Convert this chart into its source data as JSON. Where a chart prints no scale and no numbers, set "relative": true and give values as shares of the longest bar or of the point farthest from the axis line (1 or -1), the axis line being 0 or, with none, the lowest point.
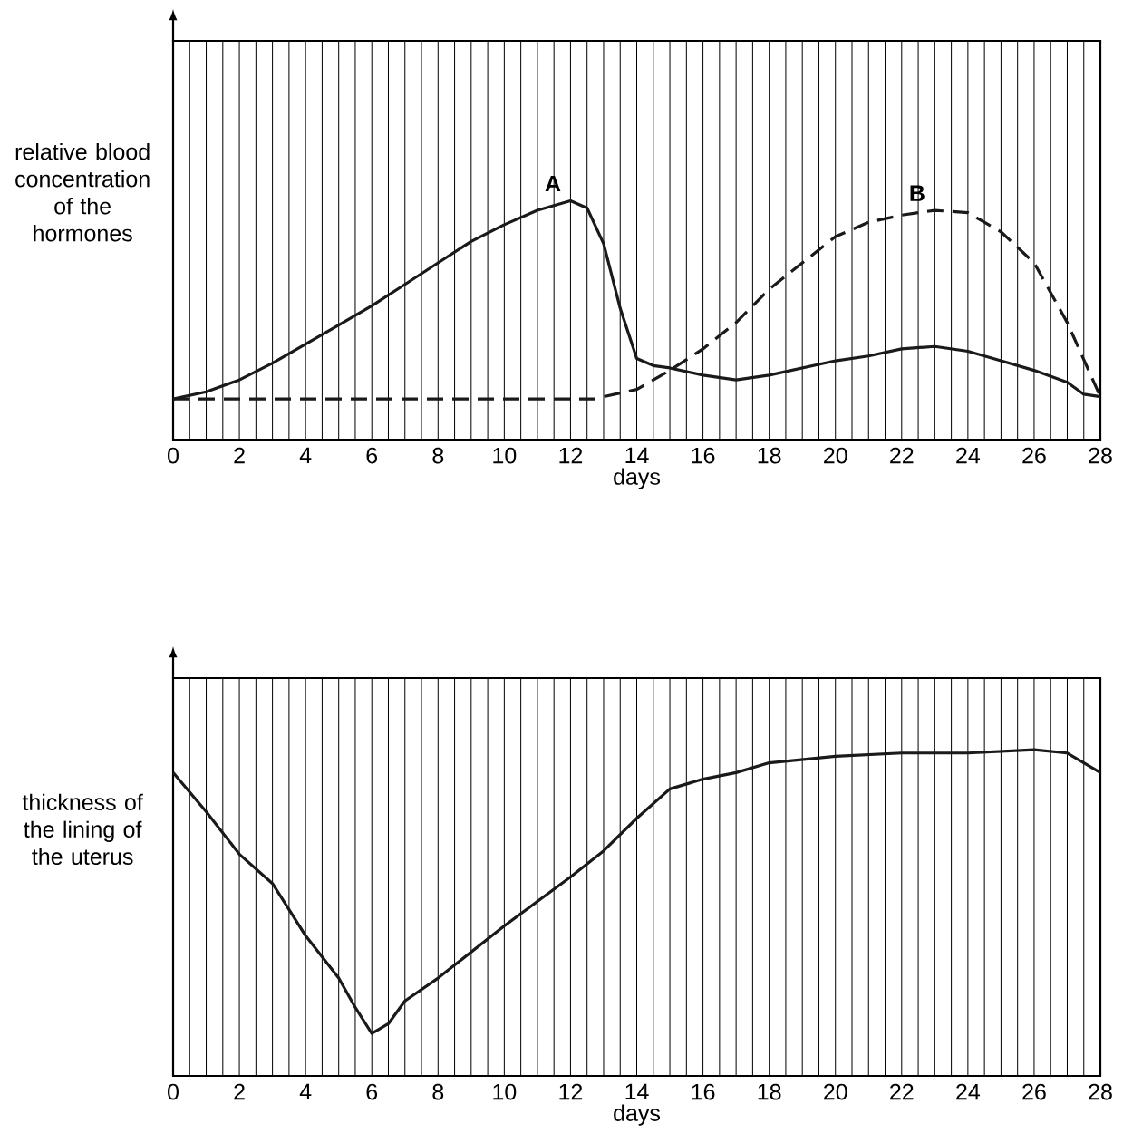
{
  "chart_data": [
    {
      "type": "line",
      "relative": true,
      "xlabel": "days",
      "ylabel": "relative blood concentration of the hormones",
      "xlim": [
        0,
        28
      ],
      "xticks": [
        0,
        2,
        4,
        6,
        8,
        10,
        12,
        14,
        16,
        18,
        20,
        22,
        24,
        26,
        28
      ],
      "grid": true,
      "marker": "none",
      "series": [
        {
          "name": "A",
          "color": "#1a1a1a",
          "line_style": "solid",
          "x": [
            0,
            1,
            2,
            3,
            4,
            5,
            6,
            7,
            8,
            9,
            10,
            11,
            12,
            12.5,
            13,
            13.5,
            14,
            14.5,
            15,
            16,
            17,
            18,
            19,
            20,
            21,
            22,
            23,
            24,
            25,
            26,
            27,
            27.5,
            28
          ],
          "values": [
            0.17,
            0.2,
            0.25,
            0.32,
            0.4,
            0.48,
            0.56,
            0.65,
            0.74,
            0.83,
            0.9,
            0.96,
            1.0,
            0.97,
            0.82,
            0.55,
            0.34,
            0.31,
            0.3,
            0.27,
            0.25,
            0.27,
            0.3,
            0.33,
            0.35,
            0.38,
            0.39,
            0.37,
            0.33,
            0.29,
            0.24,
            0.19,
            0.18
          ]
        },
        {
          "name": "B",
          "color": "#1a1a1a",
          "line_style": "dashed",
          "x": [
            0,
            4,
            8,
            12,
            12.8,
            13,
            14,
            15,
            16,
            17,
            18,
            19,
            20,
            21,
            22,
            23,
            24,
            25,
            26,
            27,
            28
          ],
          "values": [
            0.17,
            0.17,
            0.17,
            0.17,
            0.17,
            0.18,
            0.21,
            0.29,
            0.38,
            0.49,
            0.63,
            0.74,
            0.85,
            0.91,
            0.94,
            0.96,
            0.95,
            0.87,
            0.74,
            0.49,
            0.18
          ]
        }
      ]
    },
    {
      "type": "line",
      "relative": true,
      "xlabel": "days",
      "ylabel": "thickness of the lining of the uterus",
      "xlim": [
        0,
        28
      ],
      "xticks": [
        0,
        2,
        4,
        6,
        8,
        10,
        12,
        14,
        16,
        18,
        20,
        22,
        24,
        26,
        28
      ],
      "grid": true,
      "marker": "none",
      "series": [
        {
          "color": "#1a1a1a",
          "line_style": "solid",
          "x": [
            0,
            1,
            2,
            3,
            4,
            5,
            5.5,
            6,
            6.5,
            7,
            8,
            10,
            12,
            13,
            14,
            15,
            16,
            17,
            18,
            20,
            22,
            24,
            26,
            27,
            28
          ],
          "values": [
            0.93,
            0.81,
            0.68,
            0.59,
            0.43,
            0.3,
            0.21,
            0.13,
            0.16,
            0.23,
            0.3,
            0.46,
            0.61,
            0.69,
            0.79,
            0.88,
            0.91,
            0.93,
            0.96,
            0.98,
            0.99,
            0.99,
            1.0,
            0.99,
            0.93
          ]
        }
      ]
    }
  ]
}
